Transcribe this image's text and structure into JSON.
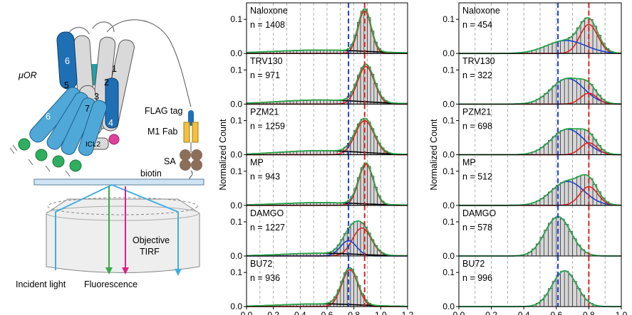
{
  "schematic": {
    "receptor_label": "μOR",
    "helix_labels": [
      "6",
      "5",
      "1",
      "2",
      "3",
      "7",
      "6",
      "4"
    ],
    "icl_label": "ICL2",
    "flag_label": "FLAG tag",
    "fab_label": "M1 Fab",
    "sa_label": "SA",
    "biotin_label": "biotin",
    "objective_label_line1": "Objective",
    "objective_label_line2": "TIRF",
    "incident_label": "Incident light",
    "fluorescence_label": "Fluorescence",
    "colors": {
      "helix_gray": "#d9d9d9",
      "helix_blue": "#1f6fb4",
      "helix_light_blue": "#4fa8d8",
      "teal": "#20a0a8",
      "green_dot": "#2fae5f",
      "pink_dot": "#e0409a",
      "fab_yellow": "#f3c13a",
      "sa_brown": "#8b6f5a",
      "slide": "#cfe3f2",
      "incident_beam": "#3fb0e0",
      "fluor_green": "#3aa84a",
      "fluor_pink": "#e0208a"
    }
  },
  "chart_data": [
    {
      "type": "histogram",
      "panel": "middle",
      "ylabel": "Normalized Count",
      "xlim": [
        0.0,
        1.2
      ],
      "x_ticks": [
        "0.0",
        "0.2",
        "0.4",
        "0.6",
        "0.8",
        "1.0",
        "1.2"
      ],
      "ylim": [
        0.0,
        0.14
      ],
      "y_ticks": [
        "0.0",
        "0.1"
      ],
      "reference_lines": [
        {
          "x": 0.76,
          "color": "#1a3fd0"
        },
        {
          "x": 0.88,
          "color": "#e02020"
        }
      ],
      "grid": "vertical dashed",
      "series_colors": {
        "fit_total": "#2aa84a",
        "high_fret": "#e02020",
        "low_fret": "#1a3fd0",
        "broad": "#000000"
      },
      "subplots": [
        {
          "name": "Naloxone",
          "n_label": "n = 1408",
          "components": [
            {
              "kind": "high",
              "mu": 0.88,
              "sigma": 0.048,
              "amp": 0.125
            },
            {
              "kind": "broad",
              "mu": 0.55,
              "sigma": 0.35,
              "amp": 0.01
            }
          ]
        },
        {
          "name": "TRV130",
          "n_label": "n = 971",
          "components": [
            {
              "kind": "high",
              "mu": 0.89,
              "sigma": 0.062,
              "amp": 0.11
            },
            {
              "kind": "broad",
              "mu": 0.55,
              "sigma": 0.32,
              "amp": 0.012
            }
          ]
        },
        {
          "name": "PZM21",
          "n_label": "n = 1259",
          "components": [
            {
              "kind": "high",
              "mu": 0.88,
              "sigma": 0.07,
              "amp": 0.1
            },
            {
              "kind": "broad",
              "mu": 0.55,
              "sigma": 0.3,
              "amp": 0.012
            }
          ]
        },
        {
          "name": "MP",
          "n_label": "n = 943",
          "components": [
            {
              "kind": "high",
              "mu": 0.89,
              "sigma": 0.055,
              "amp": 0.12
            },
            {
              "kind": "broad",
              "mu": 0.55,
              "sigma": 0.3,
              "amp": 0.008
            }
          ]
        },
        {
          "name": "DAMGO",
          "n_label": "n = 1227",
          "components": [
            {
              "kind": "high",
              "mu": 0.86,
              "sigma": 0.07,
              "amp": 0.082
            },
            {
              "kind": "low",
              "mu": 0.76,
              "sigma": 0.06,
              "amp": 0.045
            },
            {
              "kind": "broad",
              "mu": 0.55,
              "sigma": 0.28,
              "amp": 0.008
            }
          ]
        },
        {
          "name": "BU72",
          "n_label": "n = 936",
          "components": [
            {
              "kind": "high",
              "mu": 0.77,
              "sigma": 0.06,
              "amp": 0.108
            },
            {
              "kind": "broad",
              "mu": 0.55,
              "sigma": 0.3,
              "amp": 0.008
            }
          ]
        }
      ]
    },
    {
      "type": "histogram",
      "panel": "right",
      "ylabel": "Normalized Count",
      "xlim": [
        0.0,
        1.0
      ],
      "x_ticks": [
        "0.0",
        "0.2",
        "0.4",
        "0.6",
        "0.8",
        "1.0"
      ],
      "ylim": [
        0.0,
        0.14
      ],
      "y_ticks": [
        "0.0",
        "0.1"
      ],
      "reference_lines": [
        {
          "x": 0.61,
          "color": "#1a3fd0"
        },
        {
          "x": 0.8,
          "color": "#e02020"
        }
      ],
      "grid": "vertical dashed",
      "series_colors": {
        "fit_total": "#2aa84a",
        "high_fret": "#e02020",
        "low_fret": "#1a3fd0"
      },
      "subplots": [
        {
          "name": "Naloxone",
          "n_label": "n = 454",
          "components": [
            {
              "kind": "high",
              "mu": 0.8,
              "sigma": 0.055,
              "amp": 0.085
            },
            {
              "kind": "low",
              "mu": 0.66,
              "sigma": 0.12,
              "amp": 0.038
            }
          ]
        },
        {
          "name": "TRV130",
          "n_label": "n = 322",
          "components": [
            {
              "kind": "low",
              "mu": 0.67,
              "sigma": 0.1,
              "amp": 0.075
            },
            {
              "kind": "high",
              "mu": 0.8,
              "sigma": 0.05,
              "amp": 0.032
            }
          ]
        },
        {
          "name": "PZM21",
          "n_label": "n = 698",
          "components": [
            {
              "kind": "low",
              "mu": 0.67,
              "sigma": 0.1,
              "amp": 0.075
            },
            {
              "kind": "high",
              "mu": 0.8,
              "sigma": 0.05,
              "amp": 0.035
            }
          ]
        },
        {
          "name": "MP",
          "n_label": "n = 512",
          "components": [
            {
              "kind": "low",
              "mu": 0.67,
              "sigma": 0.1,
              "amp": 0.07
            },
            {
              "kind": "high",
              "mu": 0.8,
              "sigma": 0.055,
              "amp": 0.055
            }
          ]
        },
        {
          "name": "DAMGO",
          "n_label": "n = 578",
          "components": [
            {
              "kind": "low",
              "mu": 0.61,
              "sigma": 0.08,
              "amp": 0.115
            }
          ]
        },
        {
          "name": "BU72",
          "n_label": "n = 996",
          "components": [
            {
              "kind": "low",
              "mu": 0.65,
              "sigma": 0.075,
              "amp": 0.105
            }
          ]
        }
      ]
    }
  ]
}
